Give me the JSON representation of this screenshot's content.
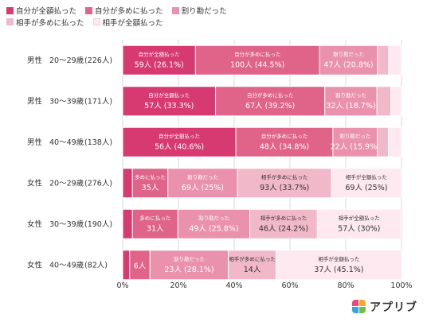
{
  "legend": [
    {
      "label": "自分が全額払った",
      "color": "#d63a70"
    },
    {
      "label": "自分が多めに払った",
      "color": "#e0638a"
    },
    {
      "label": "割り勘だった",
      "color": "#ea92ad"
    },
    {
      "label": "相手が多めに払った",
      "color": "#f1b8c9"
    },
    {
      "label": "相手が全額払った",
      "color": "#fde9ef"
    }
  ],
  "logo": {
    "text": "アプリブ",
    "colors": [
      "#e94b7a",
      "#f7a823",
      "#3aa3d8",
      "#6cc04a"
    ]
  },
  "chart_data": {
    "type": "bar",
    "orientation": "horizontal",
    "stacked": true,
    "xlim": [
      0,
      100
    ],
    "x_ticks": [
      "0%",
      "20%",
      "40%",
      "60%",
      "80%",
      "100%"
    ],
    "categories": [
      {
        "gender": "男性",
        "age": "20〜29歳",
        "n": "(226人)"
      },
      {
        "gender": "男性",
        "age": "30〜39歳",
        "n": "(171人)"
      },
      {
        "gender": "男性",
        "age": "40〜49歳",
        "n": "(138人)"
      },
      {
        "gender": "女性",
        "age": "20〜29歳",
        "n": "(276人)"
      },
      {
        "gender": "女性",
        "age": "30〜39歳",
        "n": "(190人)"
      },
      {
        "gender": "女性",
        "age": "40〜49歳",
        "n": "(82人)"
      }
    ],
    "series": [
      {
        "name": "自分が全額払った",
        "color": "#d63a70",
        "values": [
          26.1,
          33.3,
          40.6,
          3.5,
          3.5,
          2.5
        ]
      },
      {
        "name": "自分が多めに払った",
        "color": "#e0638a",
        "values": [
          44.5,
          39.2,
          34.8,
          12.7,
          16.3,
          7.3
        ]
      },
      {
        "name": "割り勘だった",
        "color": "#ea92ad",
        "values": [
          20.8,
          18.7,
          15.9,
          25.0,
          25.8,
          28.1
        ]
      },
      {
        "name": "相手が多めに払った",
        "color": "#f1b8c9",
        "values": [
          4.0,
          5.0,
          4.0,
          33.7,
          24.2,
          17.1
        ]
      },
      {
        "name": "相手が全額払った",
        "color": "#fde9ef",
        "values": [
          4.6,
          3.8,
          4.7,
          25.0,
          30.0,
          45.1
        ]
      }
    ],
    "segment_labels": [
      [
        {
          "label": "自分が全額払った",
          "value": "59人 (26.1%)"
        },
        {
          "label": "自分が多めに払った",
          "value": "100人 (44.5%)"
        },
        {
          "label": "割り勘だった",
          "value": "47人 (20.8%)"
        },
        null,
        null
      ],
      [
        {
          "label": "自分が全額払った",
          "value": "57人 (33.3%)"
        },
        {
          "label": "自分が多めに払った",
          "value": "67人 (39.2%)"
        },
        {
          "label": "割り勘だった",
          "value": "32人 (18.7%)"
        },
        null,
        null
      ],
      [
        {
          "label": "自分が全額払った",
          "value": "56人 (40.6%)"
        },
        {
          "label": "自分が多めに払った",
          "value": "48人 (34.8%)"
        },
        {
          "label": "割り勘だった",
          "value": "22人 (15.9%)"
        },
        null,
        null
      ],
      [
        null,
        {
          "label": "多めに払った",
          "value": "35人"
        },
        {
          "label": "割り勘だった",
          "value": "69人 (25%)"
        },
        {
          "label": "相手が多めに払った",
          "value": "93人 (33.7%)"
        },
        {
          "label": "相手が全額払った",
          "value": "69人 (25%)"
        }
      ],
      [
        null,
        {
          "label": "多めに払った",
          "value": "31人"
        },
        {
          "label": "割り勘だった",
          "value": "49人 (25.8%)"
        },
        {
          "label": "相手が多めに払った",
          "value": "46人 (24.2%)"
        },
        {
          "label": "相手が全額払った",
          "value": "57人 (30%)"
        }
      ],
      [
        null,
        {
          "label": "",
          "value": "6人"
        },
        {
          "label": "割り勘だった",
          "value": "23人 (28.1%)"
        },
        {
          "label": "相手が多めに払った",
          "value": "14人"
        },
        {
          "label": "相手が全額払った",
          "value": "37人 (45.1%)"
        }
      ]
    ]
  }
}
